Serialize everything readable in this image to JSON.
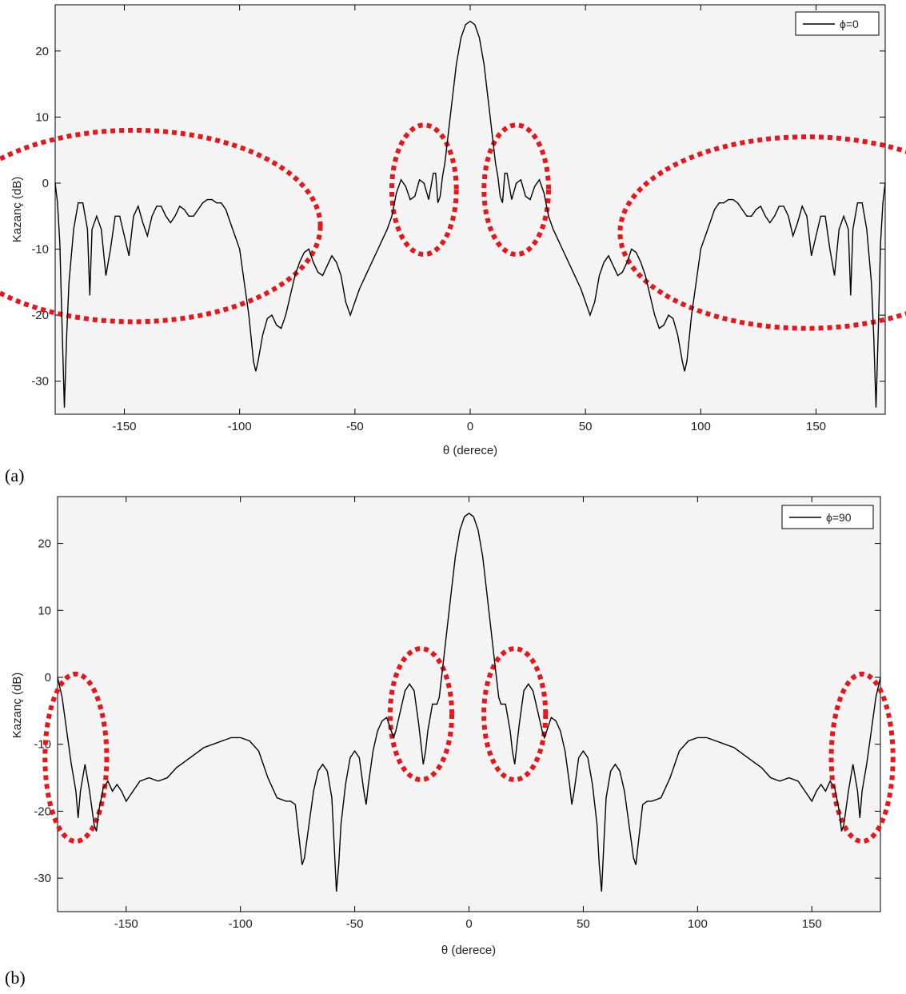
{
  "chart_data": [
    {
      "type": "line",
      "panel_label": "(a)",
      "xlabel": "θ (derece)",
      "ylabel": "Kazanç (dB)",
      "xlim": [
        -180,
        180
      ],
      "ylim": [
        -35,
        27
      ],
      "xticks": [
        -150,
        -100,
        -50,
        0,
        50,
        100,
        150
      ],
      "yticks": [
        -30,
        -20,
        -10,
        0,
        10,
        20
      ],
      "xtick_labels": [
        "-150",
        "-100",
        "-50",
        "0",
        "50",
        "100",
        "150"
      ],
      "ytick_labels": [
        "-30",
        "-20",
        "-10",
        "0",
        "10",
        "20"
      ],
      "grid": false,
      "legend_position": "top-right",
      "series_color": "#000000",
      "highlight_color": "#e8151b",
      "series": [
        {
          "name": "ϕ=0",
          "x": [
            0,
            2,
            4,
            6,
            8,
            10,
            11,
            12,
            13,
            14,
            15,
            16,
            17,
            18,
            20,
            22,
            24,
            26,
            28,
            30,
            32,
            34,
            36,
            38,
            40,
            42,
            44,
            46,
            48,
            50,
            52,
            54,
            56,
            58,
            60,
            62,
            64,
            66,
            68,
            70,
            72,
            74,
            76,
            78,
            80,
            82,
            84,
            86,
            88,
            90,
            92,
            93,
            94,
            96,
            98,
            100,
            102,
            104,
            106,
            108,
            110,
            112,
            114,
            116,
            118,
            120,
            122,
            124,
            126,
            128,
            130,
            132,
            134,
            136,
            138,
            140,
            142,
            144,
            146,
            148,
            150,
            152,
            154,
            156,
            158,
            160,
            162,
            164,
            165,
            166,
            168,
            170,
            172,
            174,
            175,
            176,
            177,
            178,
            179,
            180
          ],
          "y": [
            24.5,
            24,
            22,
            18,
            12,
            6,
            3,
            1,
            -2,
            -3,
            1.5,
            1.5,
            -0.5,
            -2.5,
            0,
            0.5,
            -2,
            -2.5,
            -0.5,
            0.5,
            -1.5,
            -5,
            -7,
            -8.5,
            -10,
            -11.5,
            -13,
            -14.5,
            -16,
            -18,
            -20,
            -18,
            -14,
            -12,
            -11,
            -12.5,
            -14,
            -13.5,
            -12,
            -10,
            -10.5,
            -12,
            -14,
            -17,
            -20,
            -22,
            -21.5,
            -20,
            -20.5,
            -23,
            -27,
            -28.5,
            -27,
            -20,
            -15,
            -10,
            -8,
            -6,
            -4,
            -3,
            -3,
            -2.5,
            -2.5,
            -3,
            -4,
            -5,
            -5,
            -4,
            -3.5,
            -5,
            -6,
            -5,
            -3.5,
            -3.5,
            -5,
            -8,
            -6,
            -3.5,
            -5,
            -11,
            -8,
            -5,
            -5,
            -10,
            -14,
            -7,
            -5,
            -7,
            -17,
            -7,
            -3,
            -3,
            -7,
            -15,
            -23,
            -34,
            -22,
            -9,
            -3,
            0
          ]
        }
      ]
    },
    {
      "type": "line",
      "panel_label": "(b)",
      "xlabel": "θ (derece)",
      "ylabel": "Kazanç (dB)",
      "xlim": [
        -180,
        180
      ],
      "ylim": [
        -35,
        27
      ],
      "xticks": [
        -150,
        -100,
        -50,
        0,
        50,
        100,
        150
      ],
      "yticks": [
        -30,
        -20,
        -10,
        0,
        10,
        20
      ],
      "xtick_labels": [
        "-150",
        "-100",
        "-50",
        "0",
        "50",
        "100",
        "150"
      ],
      "ytick_labels": [
        "-30",
        "-20",
        "-10",
        "0",
        "10",
        "20"
      ],
      "grid": false,
      "legend_position": "top-right",
      "series_color": "#000000",
      "highlight_color": "#e8151b",
      "series": [
        {
          "name": "ϕ=90",
          "x": [
            0,
            2,
            4,
            6,
            8,
            10,
            11,
            12,
            13,
            14,
            16,
            18,
            19,
            20,
            21,
            22,
            24,
            26,
            28,
            30,
            32,
            33,
            34,
            36,
            38,
            40,
            42,
            44,
            45,
            46,
            48,
            50,
            52,
            54,
            56,
            57,
            58,
            59,
            60,
            62,
            64,
            66,
            68,
            70,
            72,
            73,
            74,
            76,
            78,
            80,
            84,
            88,
            92,
            96,
            100,
            104,
            108,
            112,
            116,
            120,
            124,
            128,
            132,
            136,
            140,
            144,
            148,
            150,
            152,
            154,
            156,
            158,
            160,
            162,
            163,
            164,
            166,
            168,
            170,
            171,
            172,
            174,
            176,
            178,
            180
          ],
          "y": [
            24.5,
            24,
            22,
            18,
            12,
            6,
            3,
            0,
            -3,
            -4,
            -4,
            -8,
            -11,
            -13,
            -10,
            -7,
            -2,
            -1,
            -2,
            -5,
            -8,
            -9,
            -8,
            -6,
            -6.5,
            -8,
            -11,
            -16,
            -19,
            -17,
            -12,
            -11,
            -12,
            -16,
            -22,
            -28,
            -32,
            -25,
            -18,
            -14,
            -13,
            -14,
            -17,
            -22,
            -27,
            -28,
            -25,
            -19,
            -18.5,
            -18.5,
            -18,
            -15,
            -11,
            -9.5,
            -9,
            -9,
            -9.5,
            -10,
            -10.5,
            -11.5,
            -12.5,
            -13.5,
            -15,
            -15.5,
            -15,
            -15.5,
            -17.5,
            -18.5,
            -17,
            -16,
            -17,
            -15.5,
            -16.5,
            -20,
            -23,
            -22,
            -17,
            -13,
            -17,
            -21,
            -17,
            -13,
            -8,
            -3,
            0
          ]
        }
      ]
    }
  ]
}
